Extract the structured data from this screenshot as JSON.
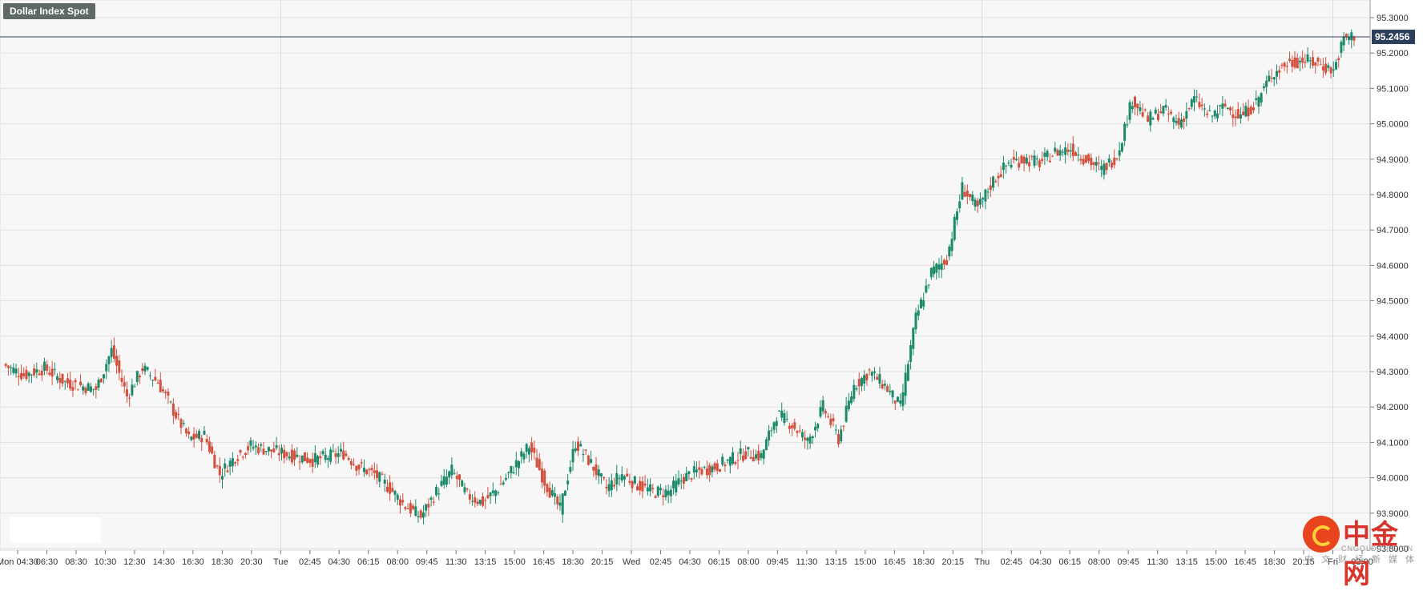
{
  "symbol_badge": "Dollar Index Spot",
  "chart_data": {
    "type": "candlestick",
    "title": "Dollar Index Spot",
    "ylim": [
      93.8,
      95.3
    ],
    "y_ticks": [
      "95.3000",
      "95.2000",
      "95.1000",
      "95.0000",
      "94.9000",
      "94.8000",
      "94.7000",
      "94.6000",
      "94.5000",
      "94.4000",
      "94.3000",
      "94.2000",
      "94.1000",
      "94.0000",
      "93.9000",
      "93.8000"
    ],
    "last_price": "95.2456",
    "x_labels": [
      "Mon 04:30",
      "06:30",
      "08:30",
      "10:30",
      "12:30",
      "14:30",
      "16:30",
      "18:30",
      "20:30",
      "Tue",
      "02:45",
      "04:30",
      "06:15",
      "08:00",
      "09:45",
      "11:30",
      "13:15",
      "15:00",
      "16:45",
      "18:30",
      "20:15",
      "Wed",
      "02:45",
      "04:30",
      "06:15",
      "08:00",
      "09:45",
      "11:30",
      "13:15",
      "15:00",
      "16:45",
      "18:30",
      "20:15",
      "Thu",
      "02:45",
      "04:30",
      "06:15",
      "08:00",
      "09:45",
      "11:30",
      "13:15",
      "15:00",
      "16:45",
      "18:30",
      "20:15",
      "Fri",
      "03:00"
    ],
    "day_separators": [
      "Tue",
      "Wed",
      "Thu",
      "Fri"
    ],
    "bull_color": "#1c8a6a",
    "bear_color": "#d4503e",
    "close_path": [
      [
        0,
        94.32
      ],
      [
        8,
        94.29
      ],
      [
        16,
        94.31
      ],
      [
        24,
        94.27
      ],
      [
        30,
        94.26
      ],
      [
        36,
        94.25
      ],
      [
        42,
        94.36
      ],
      [
        48,
        94.23
      ],
      [
        54,
        94.31
      ],
      [
        60,
        94.27
      ],
      [
        66,
        94.19
      ],
      [
        72,
        94.11
      ],
      [
        78,
        94.12
      ],
      [
        84,
        94.01
      ],
      [
        90,
        94.06
      ],
      [
        96,
        94.09
      ],
      [
        102,
        94.08
      ],
      [
        108,
        94.07
      ],
      [
        114,
        94.06
      ],
      [
        120,
        94.05
      ],
      [
        126,
        94.06
      ],
      [
        132,
        94.07
      ],
      [
        138,
        94.03
      ],
      [
        144,
        94.01
      ],
      [
        150,
        93.97
      ],
      [
        156,
        93.92
      ],
      [
        162,
        93.89
      ],
      [
        168,
        93.96
      ],
      [
        174,
        94.02
      ],
      [
        180,
        93.95
      ],
      [
        186,
        93.93
      ],
      [
        192,
        93.97
      ],
      [
        198,
        94.03
      ],
      [
        204,
        94.09
      ],
      [
        210,
        93.99
      ],
      [
        216,
        93.91
      ],
      [
        222,
        94.1
      ],
      [
        228,
        94.04
      ],
      [
        234,
        93.97
      ],
      [
        240,
        94.01
      ],
      [
        246,
        93.98
      ],
      [
        252,
        93.96
      ],
      [
        258,
        93.96
      ],
      [
        264,
        94.0
      ],
      [
        270,
        94.02
      ],
      [
        276,
        94.03
      ],
      [
        282,
        94.05
      ],
      [
        288,
        94.07
      ],
      [
        294,
        94.06
      ],
      [
        300,
        94.18
      ],
      [
        306,
        94.15
      ],
      [
        312,
        94.1
      ],
      [
        318,
        94.2
      ],
      [
        324,
        94.11
      ],
      [
        330,
        94.26
      ],
      [
        336,
        94.3
      ],
      [
        342,
        94.26
      ],
      [
        348,
        94.2
      ],
      [
        354,
        94.45
      ],
      [
        360,
        94.58
      ],
      [
        366,
        94.62
      ],
      [
        372,
        94.82
      ],
      [
        378,
        94.76
      ],
      [
        384,
        94.84
      ],
      [
        390,
        94.89
      ],
      [
        396,
        94.9
      ],
      [
        402,
        94.89
      ],
      [
        408,
        94.92
      ],
      [
        414,
        94.93
      ],
      [
        420,
        94.9
      ],
      [
        426,
        94.87
      ],
      [
        432,
        94.91
      ],
      [
        438,
        95.07
      ],
      [
        444,
        95.01
      ],
      [
        450,
        95.04
      ],
      [
        456,
        95.0
      ],
      [
        462,
        95.07
      ],
      [
        468,
        95.02
      ],
      [
        474,
        95.05
      ],
      [
        480,
        95.02
      ],
      [
        486,
        95.06
      ],
      [
        492,
        95.14
      ],
      [
        498,
        95.17
      ],
      [
        504,
        95.18
      ],
      [
        510,
        95.17
      ],
      [
        516,
        95.15
      ],
      [
        520,
        95.24
      ],
      [
        524,
        95.25
      ]
    ]
  }
}
